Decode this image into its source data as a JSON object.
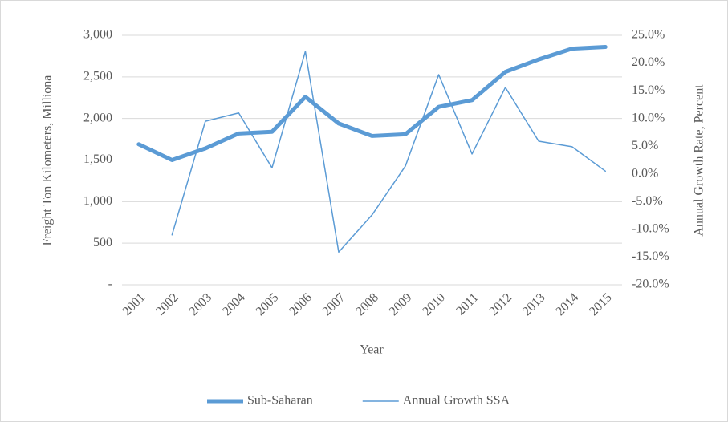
{
  "chart_data": {
    "type": "line",
    "categories": [
      "2001",
      "2002",
      "2003",
      "2004",
      "2005",
      "2006",
      "2007",
      "2008",
      "2009",
      "2010",
      "2011",
      "2012",
      "2013",
      "2014",
      "2015"
    ],
    "x_label": "Year",
    "y_label": "Freight Ton Kilometers, Milliona",
    "y2_label": "Annual Growth Rate, Percent",
    "ylim": [
      0,
      3000
    ],
    "yticks": [
      {
        "value": 0,
        "label": "-"
      },
      500,
      {
        "value": 1000,
        "label": "1,000"
      },
      {
        "value": 1500,
        "label": "1,500"
      },
      {
        "value": 2000,
        "label": "2,000"
      },
      {
        "value": 2500,
        "label": "2,500"
      },
      {
        "value": 3000,
        "label": "3,000"
      }
    ],
    "y2lim": [
      -20,
      25
    ],
    "y2ticks": [
      {
        "value": -20,
        "label": "-20.0%"
      },
      {
        "value": -15,
        "label": "-15.0%"
      },
      {
        "value": -10,
        "label": "-10.0%"
      },
      {
        "value": -5,
        "label": "-5.0%"
      },
      {
        "value": 0,
        "label": "0.0%"
      },
      {
        "value": 5,
        "label": "5.0%"
      },
      {
        "value": 10,
        "label": "10.0%"
      },
      {
        "value": 15,
        "label": "15.0%"
      },
      {
        "value": 20,
        "label": "20.0%"
      },
      {
        "value": 25,
        "label": "25.0%"
      }
    ],
    "grid": true,
    "legend": "bottom",
    "series": [
      {
        "name": "Sub-Saharan",
        "color": "#5b9bd5",
        "width": 5,
        "values": [
          1690,
          1500,
          1640,
          1820,
          1840,
          2260,
          1940,
          1790,
          1810,
          2140,
          2220,
          2560,
          2710,
          2840,
          2860
        ]
      },
      {
        "name": "Annual Growth SSA",
        "color": "#5b9bd5",
        "width": 1.5,
        "axis": "y2",
        "values": [
          null,
          -11.0,
          9.5,
          11.0,
          1.1,
          22.1,
          -14.1,
          -7.4,
          1.4,
          17.9,
          3.6,
          15.6,
          5.9,
          4.9,
          0.5
        ]
      }
    ]
  }
}
